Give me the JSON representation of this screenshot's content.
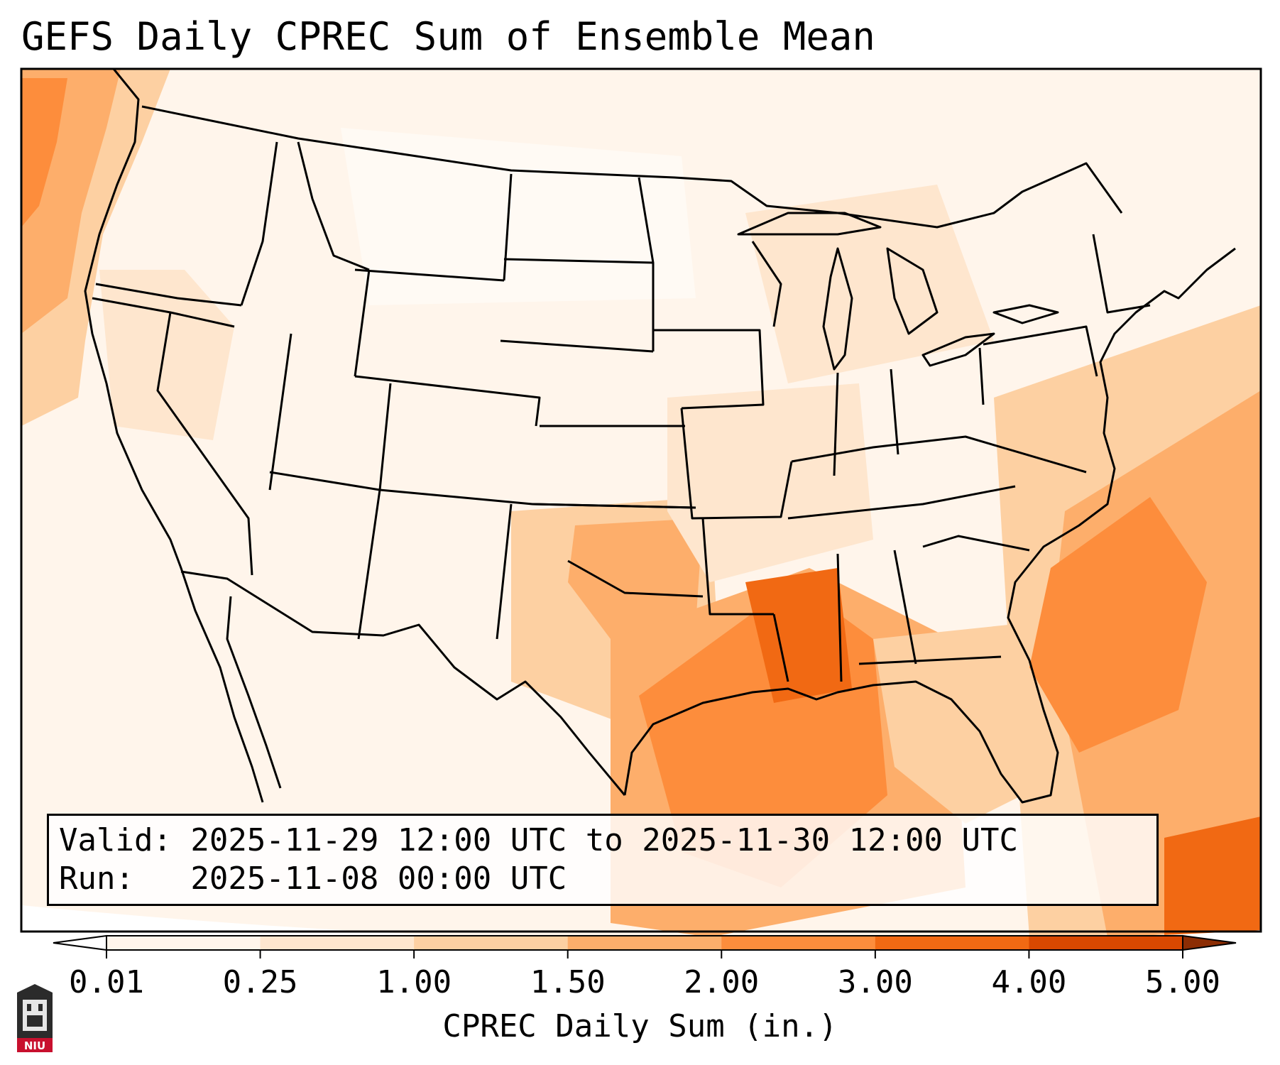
{
  "header": {
    "title": "GEFS Daily CPREC Sum of Ensemble Mean"
  },
  "info": {
    "valid_line": "Valid: 2025-11-29 12:00 UTC to 2025-11-30 12:00 UTC",
    "run_line": "Run:   2025-11-08 00:00 UTC"
  },
  "colorbar": {
    "label": "CPREC Daily Sum (in.)",
    "ticks": [
      "0.01",
      "0.25",
      "1.00",
      "1.50",
      "2.00",
      "3.00",
      "4.00",
      "5.00"
    ],
    "colors": [
      "#fff5eb",
      "#fee6ce",
      "#fdd0a2",
      "#fdae6b",
      "#fd8d3c",
      "#f16913",
      "#d94801",
      "#a63603"
    ],
    "under_color": "#ffffff",
    "over_color": "#8c2d04"
  },
  "map": {
    "projection": "lambert-conformal-conus",
    "basemap": [
      "coastlines",
      "us-state-borders",
      "country-borders"
    ],
    "colormap": "Oranges"
  },
  "logo": {
    "name": "niu-logo",
    "text": "NIU"
  }
}
